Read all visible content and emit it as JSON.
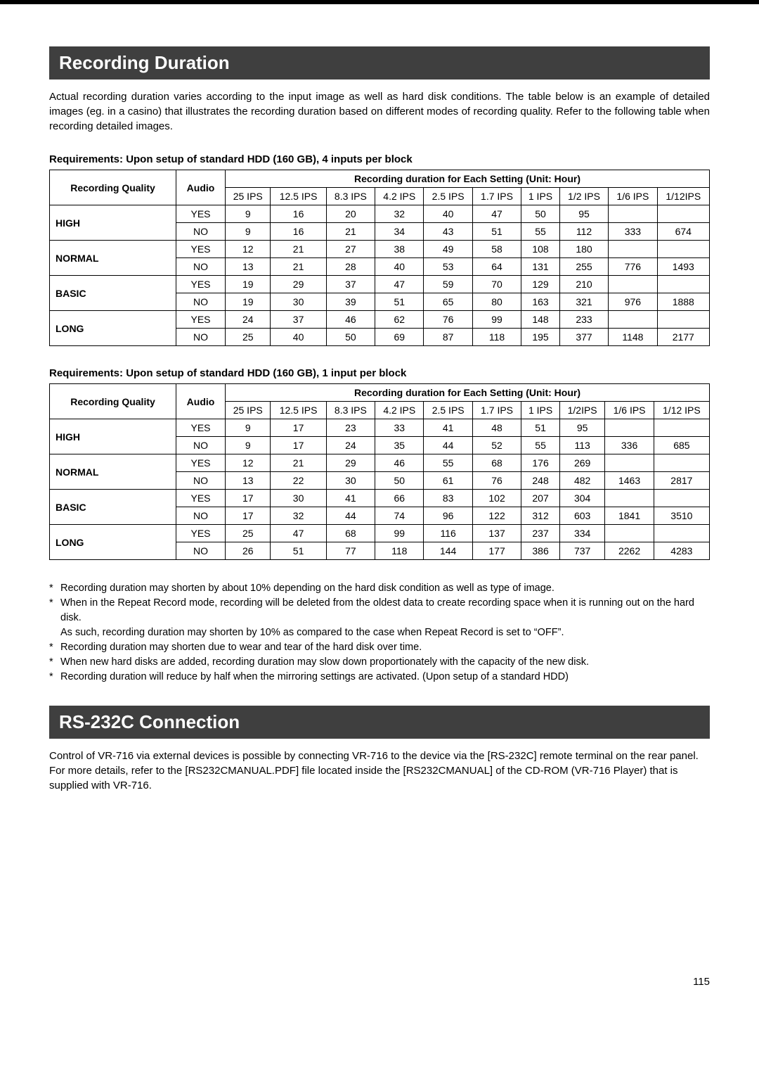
{
  "section1": {
    "title": "Recording Duration",
    "intro": "Actual recording duration varies according to the input image as well as hard disk conditions. The table below is an example of detailed images (eg. in a casino) that illustrates the recording duration based on different modes of recording quality. Refer to the following table when recording detailed images."
  },
  "table_headers": {
    "recording_quality": "Recording Quality",
    "audio": "Audio",
    "duration_header": "Recording duration for Each Setting (Unit: Hour)"
  },
  "table1": {
    "requirement": "Requirements: Upon setup of standard HDD (160 GB), 4 inputs per block",
    "ips_cols": [
      "25 IPS",
      "12.5 IPS",
      "8.3 IPS",
      "4.2 IPS",
      "2.5 IPS",
      "1.7 IPS",
      "1 IPS",
      "1/2 IPS",
      "1/6 IPS",
      "1/12IPS"
    ],
    "rows": [
      {
        "quality": "HIGH",
        "audio": "YES",
        "v": [
          "9",
          "16",
          "20",
          "32",
          "40",
          "47",
          "50",
          "95",
          "",
          ""
        ]
      },
      {
        "quality": "",
        "audio": "NO",
        "v": [
          "9",
          "16",
          "21",
          "34",
          "43",
          "51",
          "55",
          "112",
          "333",
          "674"
        ]
      },
      {
        "quality": "NORMAL",
        "audio": "YES",
        "v": [
          "12",
          "21",
          "27",
          "38",
          "49",
          "58",
          "108",
          "180",
          "",
          ""
        ]
      },
      {
        "quality": "",
        "audio": "NO",
        "v": [
          "13",
          "21",
          "28",
          "40",
          "53",
          "64",
          "131",
          "255",
          "776",
          "1493"
        ]
      },
      {
        "quality": "BASIC",
        "audio": "YES",
        "v": [
          "19",
          "29",
          "37",
          "47",
          "59",
          "70",
          "129",
          "210",
          "",
          ""
        ]
      },
      {
        "quality": "",
        "audio": "NO",
        "v": [
          "19",
          "30",
          "39",
          "51",
          "65",
          "80",
          "163",
          "321",
          "976",
          "1888"
        ]
      },
      {
        "quality": "LONG",
        "audio": "YES",
        "v": [
          "24",
          "37",
          "46",
          "62",
          "76",
          "99",
          "148",
          "233",
          "",
          ""
        ]
      },
      {
        "quality": "",
        "audio": "NO",
        "v": [
          "25",
          "40",
          "50",
          "69",
          "87",
          "118",
          "195",
          "377",
          "1148",
          "2177"
        ]
      }
    ]
  },
  "table2": {
    "requirement": "Requirements: Upon setup of standard HDD (160 GB), 1 input per block",
    "ips_cols": [
      "25 IPS",
      "12.5 IPS",
      "8.3 IPS",
      "4.2 IPS",
      "2.5 IPS",
      "1.7 IPS",
      "1 IPS",
      "1/2IPS",
      "1/6 IPS",
      "1/12 IPS"
    ],
    "rows": [
      {
        "quality": "HIGH",
        "audio": "YES",
        "v": [
          "9",
          "17",
          "23",
          "33",
          "41",
          "48",
          "51",
          "95",
          "",
          ""
        ]
      },
      {
        "quality": "",
        "audio": "NO",
        "v": [
          "9",
          "17",
          "24",
          "35",
          "44",
          "52",
          "55",
          "113",
          "336",
          "685"
        ]
      },
      {
        "quality": "NORMAL",
        "audio": "YES",
        "v": [
          "12",
          "21",
          "29",
          "46",
          "55",
          "68",
          "176",
          "269",
          "",
          ""
        ]
      },
      {
        "quality": "",
        "audio": "NO",
        "v": [
          "13",
          "22",
          "30",
          "50",
          "61",
          "76",
          "248",
          "482",
          "1463",
          "2817"
        ]
      },
      {
        "quality": "BASIC",
        "audio": "YES",
        "v": [
          "17",
          "30",
          "41",
          "66",
          "83",
          "102",
          "207",
          "304",
          "",
          ""
        ]
      },
      {
        "quality": "",
        "audio": "NO",
        "v": [
          "17",
          "32",
          "44",
          "74",
          "96",
          "122",
          "312",
          "603",
          "1841",
          "3510"
        ]
      },
      {
        "quality": "LONG",
        "audio": "YES",
        "v": [
          "25",
          "47",
          "68",
          "99",
          "116",
          "137",
          "237",
          "334",
          "",
          ""
        ]
      },
      {
        "quality": "",
        "audio": "NO",
        "v": [
          "26",
          "51",
          "77",
          "118",
          "144",
          "177",
          "386",
          "737",
          "2262",
          "4283"
        ]
      }
    ]
  },
  "footnotes": [
    "Recording duration may shorten by about 10% depending on the hard disk condition as well as type of image.",
    "When in the Repeat Record mode, recording will be deleted from the oldest data to create recording space when it is running out on the hard disk.",
    "As such, recording duration may shorten by 10% as compared to the case when Repeat Record is set to “OFF”.",
    "Recording duration may shorten due to wear and tear of the hard disk over time.",
    "When new hard disks are added, recording duration may slow down proportionately with the capacity of the new disk.",
    "Recording duration will reduce by half when the mirroring settings are activated. (Upon setup of a standard HDD)"
  ],
  "footnote_stars": [
    "*",
    "*",
    "",
    "*",
    "*",
    "*"
  ],
  "section2": {
    "title": "RS-232C Connection",
    "p1": "Control of VR-716 via external devices is possible by connecting VR-716 to the device via the [RS-232C] remote terminal on the rear panel.",
    "p2": "For more details, refer to the [RS232CMANUAL.PDF] file located inside the [RS232CMANUAL] of the CD-ROM (VR-716 Player) that is supplied with VR-716."
  },
  "page_number": "115"
}
